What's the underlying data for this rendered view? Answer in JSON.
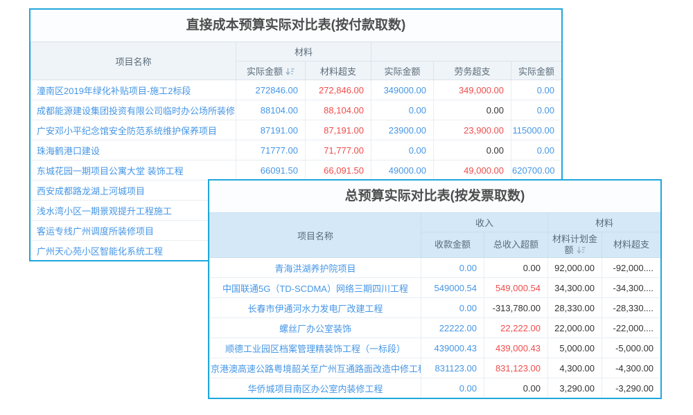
{
  "colors": {
    "border": "#1ea7dc",
    "title_color": "#4d4d4d",
    "title_bg": "#fbfdfe",
    "header_text": "#5a6b78",
    "t1_header_bg": "#eff4f9",
    "t2_header_bg": "#d4e8f7",
    "blue": "#4596e6",
    "red": "#f14b4b",
    "dark": "#333333"
  },
  "table1": {
    "title": "直接成本预算实际对比表(按付款取数)",
    "header": {
      "name": "项目名称",
      "groups": [
        {
          "label": "材料",
          "span": 2
        },
        {
          "label": "",
          "span": 3
        }
      ],
      "subs": [
        "实际金额",
        "材料超支",
        "实际金额",
        "劳务超支",
        "实际金额"
      ],
      "sort_icon": "sort-descending-icon",
      "sorted_column_index": 0
    },
    "rows": [
      {
        "name": "潼南区2019年绿化补贴项目-施工2标段",
        "cells": [
          [
            "272846.00",
            "blue"
          ],
          [
            "272,846.00",
            "red"
          ],
          [
            "349000.00",
            "blue"
          ],
          [
            "349,000.00",
            "red"
          ],
          [
            "0.00",
            "blue"
          ]
        ]
      },
      {
        "name": "成都能源建设集团投资有限公司临时办公场所装修改",
        "cells": [
          [
            "88104.00",
            "blue"
          ],
          [
            "88,104.00",
            "red"
          ],
          [
            "0.00",
            "blue"
          ],
          [
            "0.00",
            "dark"
          ],
          [
            "0.00",
            "blue"
          ]
        ]
      },
      {
        "name": "广安邓小平纪念馆安全防范系统维护保养项目",
        "cells": [
          [
            "87191.00",
            "blue"
          ],
          [
            "87,191.00",
            "red"
          ],
          [
            "23900.00",
            "blue"
          ],
          [
            "23,900.00",
            "red"
          ],
          [
            "115000.00",
            "blue"
          ]
        ]
      },
      {
        "name": "珠海鹤港口建设",
        "cells": [
          [
            "71777.00",
            "blue"
          ],
          [
            "71,777.00",
            "red"
          ],
          [
            "0.00",
            "blue"
          ],
          [
            "0.00",
            "dark"
          ],
          [
            "0.00",
            "blue"
          ]
        ]
      },
      {
        "name": "东城花园一期项目公寓大堂 装饰工程",
        "cells": [
          [
            "66091.50",
            "blue"
          ],
          [
            "66,091.50",
            "red"
          ],
          [
            "49000.00",
            "blue"
          ],
          [
            "49,000.00",
            "red"
          ],
          [
            "620700.00",
            "blue"
          ]
        ]
      },
      {
        "name": "西安成都路龙湖上河城项目",
        "cells": []
      },
      {
        "name": "浅水湾小区一期景观提升工程施工",
        "cells": []
      },
      {
        "name": "客运专线广州调度所装修项目",
        "cells": []
      },
      {
        "name": "广州天心苑小区智能化系统工程",
        "cells": []
      }
    ]
  },
  "table2": {
    "title": "总预算实际对比表(按发票取数)",
    "header": {
      "name": "项目名称",
      "groups": [
        {
          "label": "收入",
          "span": 2
        },
        {
          "label": "材料",
          "span": 2
        }
      ],
      "subs": [
        "收款金额",
        "总收入超额",
        "材料计划金额",
        "材料超支"
      ],
      "sort_icon": "sort-descending-icon",
      "sorted_column_index": 2
    },
    "rows": [
      {
        "name": "青海洪湖养护院项目",
        "cells": [
          [
            "0.00",
            "blue"
          ],
          [
            "0.00",
            "dark"
          ],
          [
            "92,000.00",
            "dark"
          ],
          [
            "-92,000....",
            "dark"
          ]
        ]
      },
      {
        "name": "中国联通5G（TD-SCDMA）网络三期四川工程",
        "cells": [
          [
            "549000.54",
            "blue"
          ],
          [
            "549,000.54",
            "red"
          ],
          [
            "34,300.00",
            "dark"
          ],
          [
            "-34,300....",
            "dark"
          ]
        ]
      },
      {
        "name": "长春市伊通河水力发电厂改建工程",
        "cells": [
          [
            "0.00",
            "blue"
          ],
          [
            "-313,780.00",
            "dark"
          ],
          [
            "28,330.00",
            "dark"
          ],
          [
            "-28,330....",
            "dark"
          ]
        ]
      },
      {
        "name": "螺丝厂办公室装饰",
        "cells": [
          [
            "22222.00",
            "blue"
          ],
          [
            "22,222.00",
            "red"
          ],
          [
            "22,000.00",
            "dark"
          ],
          [
            "-22,000....",
            "dark"
          ]
        ]
      },
      {
        "name": "顺德工业园区档案管理精装饰工程（一标段）",
        "cells": [
          [
            "439000.43",
            "blue"
          ],
          [
            "439,000.43",
            "red"
          ],
          [
            "5,000.00",
            "dark"
          ],
          [
            "-5,000.00",
            "dark"
          ]
        ]
      },
      {
        "name": "京港澳高速公路粤境韶关至广州互通路面改造中修工程",
        "cells": [
          [
            "831123.00",
            "blue"
          ],
          [
            "831,123.00",
            "red"
          ],
          [
            "4,300.00",
            "dark"
          ],
          [
            "-4,300.00",
            "dark"
          ]
        ]
      },
      {
        "name": "华侨城项目南区办公室内装修工程",
        "cells": [
          [
            "0.00",
            "blue"
          ],
          [
            "0.00",
            "dark"
          ],
          [
            "3,290.00",
            "dark"
          ],
          [
            "-3,290.00",
            "dark"
          ]
        ]
      }
    ]
  }
}
